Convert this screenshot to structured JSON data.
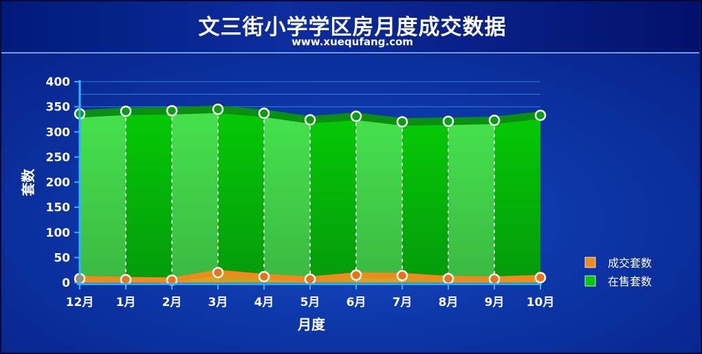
{
  "header": {
    "title": "文三街小学学区房月度成交数据",
    "subtitle": "www.xuequfang.com"
  },
  "colors": {
    "sales_line": "#f08a1c",
    "sales_fill": "#f0a020",
    "listing_light": "#45e24d",
    "listing_dark": "#05c905",
    "listing_line": "#0b8f12",
    "axis": "#2fb6ff",
    "marker_fill": "#ffffff"
  },
  "chart_data": {
    "type": "area",
    "title": "文三街小学学区房月度成交数据",
    "subtitle": "www.xuequfang.com",
    "xlabel": "月度",
    "ylabel": "套数",
    "categories": [
      "12月",
      "1月",
      "2月",
      "3月",
      "4月",
      "5月",
      "6月",
      "7月",
      "8月",
      "9月",
      "10月"
    ],
    "ylim": [
      0,
      400
    ],
    "yticks": [
      0,
      50,
      100,
      150,
      200,
      250,
      300,
      350,
      400
    ],
    "grid": true,
    "legend_position": "right",
    "series": [
      {
        "name": "成交套数",
        "values": [
          8,
          6,
          5,
          20,
          12,
          7,
          15,
          14,
          8,
          7,
          10
        ]
      },
      {
        "name": "在售套数",
        "values": [
          336,
          341,
          342,
          345,
          337,
          324,
          331,
          320,
          321,
          323,
          333
        ]
      }
    ]
  }
}
